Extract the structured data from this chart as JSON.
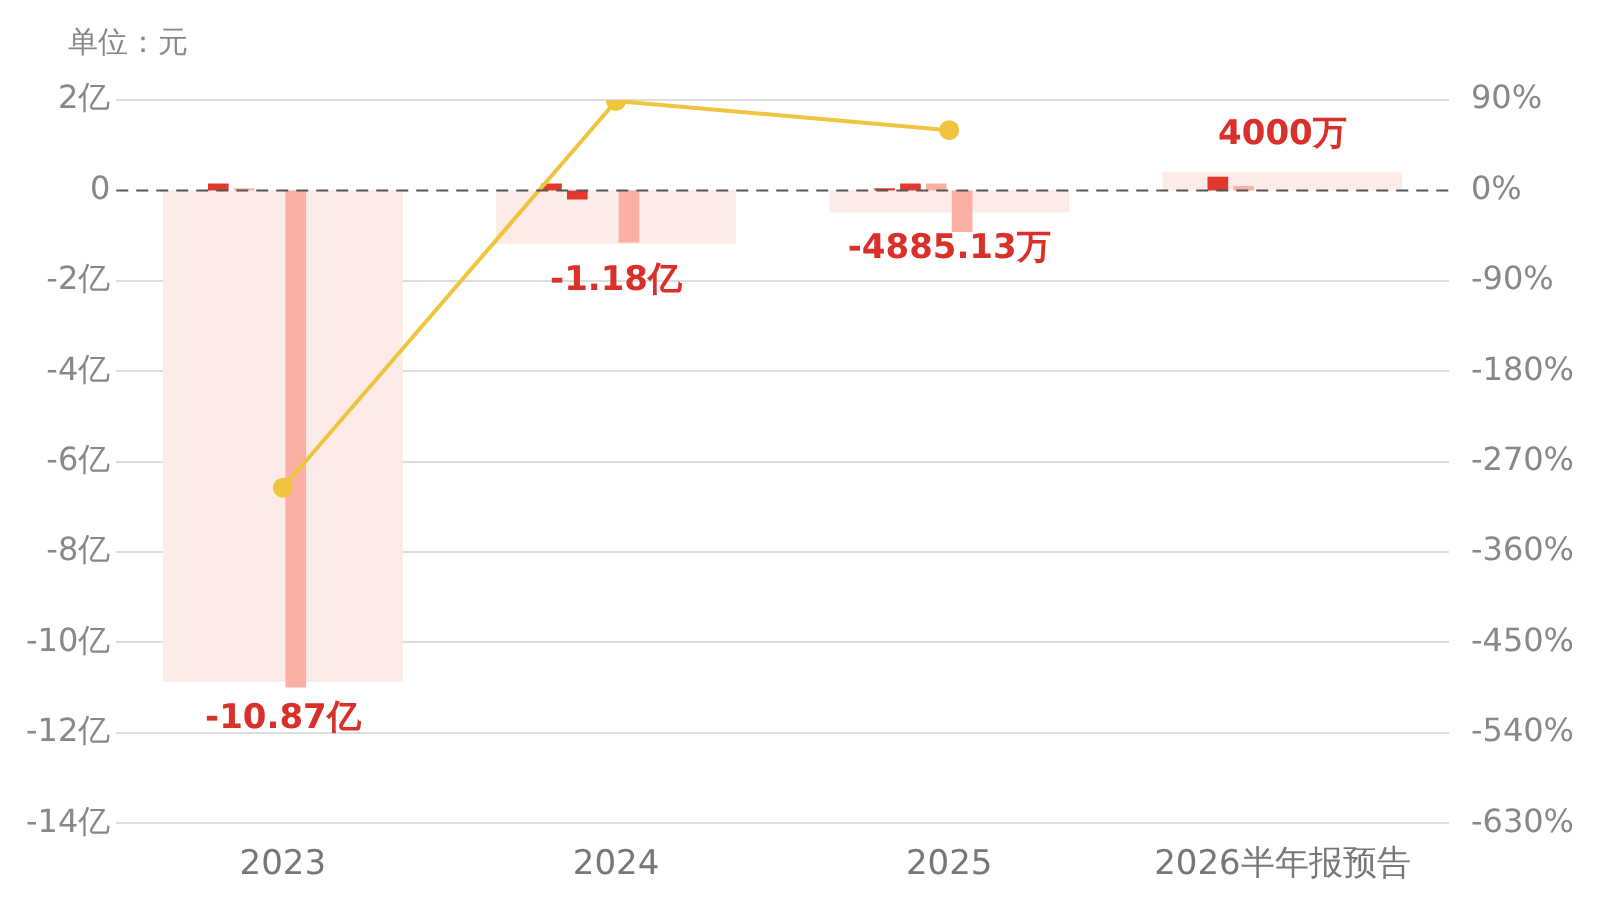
{
  "chart_data": {
    "type": "bar",
    "ylabel": "单位：元",
    "categories": [
      "2023",
      "2024",
      "2025",
      "2026半年报预告"
    ],
    "series": [
      {
        "color": "#fdebe7",
        "values": [
          -10.87,
          -1.18,
          -0.49,
          0.4
        ]
      },
      {
        "colors": [
          "#e3392c",
          "#e3392c",
          "#e3392c",
          "#e3392c"
        ],
        "values": [
          0.15,
          0.15,
          0.05,
          0.3
        ]
      },
      {
        "colors": [
          "#fbb0a3",
          "#e3392c",
          "#e3392c",
          "#fbb0a3"
        ],
        "values": [
          0.05,
          -0.2,
          0.15,
          0.1
        ]
      },
      {
        "colors": [
          "#fbb0a3",
          "#fbb0a3",
          "#fbb0a3",
          "#fbb0a3"
        ],
        "values": [
          0,
          0,
          0.15,
          null
        ]
      },
      {
        "colors": [
          "#fbb0a3",
          "#fbb0a3",
          "#fbb0a3",
          "#fbb0a3"
        ],
        "values": [
          -11.0,
          -1.15,
          -0.92,
          null
        ]
      },
      {
        "type": "line",
        "axis": "y2",
        "color": "#f0c43f",
        "values": [
          -296,
          89,
          60,
          null
        ]
      }
    ],
    "ylim": [
      -14,
      2
    ],
    "yticks": [
      {
        "value": 2,
        "label": "2亿"
      },
      0,
      {
        "value": -2,
        "label": "-2亿"
      },
      {
        "value": -4,
        "label": "-4亿"
      },
      {
        "value": -6,
        "label": "-6亿"
      },
      {
        "value": -8,
        "label": "-8亿"
      },
      {
        "value": -10,
        "label": "-10亿"
      },
      {
        "value": -12,
        "label": "-12亿"
      },
      {
        "value": -14,
        "label": "-14亿"
      }
    ],
    "y2lim": [
      -630,
      90
    ],
    "y2ticks": [
      {
        "value": 90,
        "label": "90%"
      },
      {
        "value": 0,
        "label": "0%"
      },
      {
        "value": -90,
        "label": "-90%"
      },
      {
        "value": -180,
        "label": "-180%"
      },
      {
        "value": -270,
        "label": "-270%"
      },
      {
        "value": -360,
        "label": "-360%"
      },
      {
        "value": -450,
        "label": "-450%"
      },
      {
        "value": -540,
        "label": "-540%"
      },
      {
        "value": -630,
        "label": "-630%"
      }
    ],
    "ref_lines": [
      {
        "axis": "y",
        "value": 0,
        "color": "#555555",
        "line_style": "dashed"
      }
    ],
    "annotations": [
      {
        "text": "-10.87亿",
        "x": "2023",
        "y": -10.87
      },
      {
        "text": "-1.18亿",
        "x": "2024",
        "y": -1.18
      },
      {
        "text": "-4885.13万",
        "x": "2025",
        "y": -0.49
      },
      {
        "text": "4000万",
        "x": "2026半年报预告",
        "y": 0.4
      }
    ],
    "grid": "y",
    "legend": false,
    "marker": "circle",
    "line_style": "solid"
  }
}
